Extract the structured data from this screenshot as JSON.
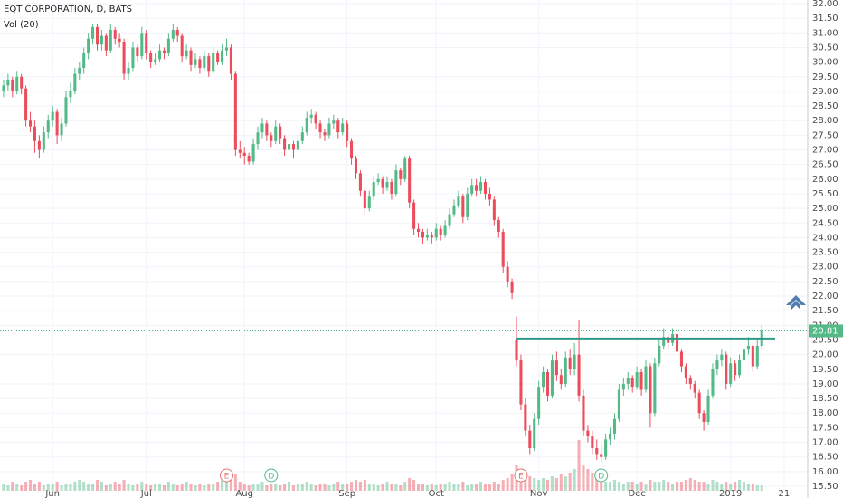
{
  "chart_data": {
    "type": "candlestick",
    "title": "EQT CORPORATION, D, BATS",
    "volume_title": "Vol (20)",
    "up_color": "#53b987",
    "down_color": "#eb4d5c",
    "grid": true,
    "ylim": [
      15.5,
      32
    ],
    "yticks": [
      {
        "value": 15.5,
        "label": "15.50"
      },
      {
        "value": 16,
        "label": "16.00"
      },
      {
        "value": 16.5,
        "label": "16.50"
      },
      {
        "value": 17,
        "label": "17.00"
      },
      {
        "value": 17.5,
        "label": "17.50"
      },
      {
        "value": 18,
        "label": "18.00"
      },
      {
        "value": 18.5,
        "label": "18.50"
      },
      {
        "value": 19,
        "label": "19.00"
      },
      {
        "value": 19.5,
        "label": "19.50"
      },
      {
        "value": 20,
        "label": "20.00"
      },
      {
        "value": 20.5,
        "label": "20.50"
      },
      {
        "value": 21,
        "label": "21.00"
      },
      {
        "value": 21.5,
        "label": "21.50"
      },
      {
        "value": 22,
        "label": "22.00"
      },
      {
        "value": 22.5,
        "label": "22.50"
      },
      {
        "value": 23,
        "label": "23.00"
      },
      {
        "value": 23.5,
        "label": "23.50"
      },
      {
        "value": 24,
        "label": "24.00"
      },
      {
        "value": 24.5,
        "label": "24.50"
      },
      {
        "value": 25,
        "label": "25.00"
      },
      {
        "value": 25.5,
        "label": "25.50"
      },
      {
        "value": 26,
        "label": "26.00"
      },
      {
        "value": 26.5,
        "label": "26.50"
      },
      {
        "value": 27,
        "label": "27.00"
      },
      {
        "value": 27.5,
        "label": "27.50"
      },
      {
        "value": 28,
        "label": "28.00"
      },
      {
        "value": 28.5,
        "label": "28.50"
      },
      {
        "value": 29,
        "label": "29.00"
      },
      {
        "value": 29.5,
        "label": "29.50"
      },
      {
        "value": 30,
        "label": "30.00"
      },
      {
        "value": 30.5,
        "label": "30.50"
      },
      {
        "value": 31,
        "label": "31.00"
      },
      {
        "value": 31.5,
        "label": "31.50"
      },
      {
        "value": 32,
        "label": "32.00"
      }
    ],
    "xlim": [
      -0.8,
      180.3
    ],
    "xticks": [
      {
        "value": 11,
        "label": "Jun"
      },
      {
        "value": 32,
        "label": "Jul"
      },
      {
        "value": 54,
        "label": "Aug"
      },
      {
        "value": 77,
        "label": "Sep"
      },
      {
        "value": 97,
        "label": "Oct"
      },
      {
        "value": 120,
        "label": "Nov"
      },
      {
        "value": 142,
        "label": "Dec"
      },
      {
        "value": 163,
        "label": "2019"
      },
      {
        "value": 175,
        "label": "21"
      }
    ],
    "candles": [
      [
        29.0,
        29.4,
        28.8,
        29.2
      ],
      [
        29.2,
        29.6,
        29.0,
        29.4
      ],
      [
        29.4,
        29.5,
        28.8,
        29.0
      ],
      [
        29.0,
        29.7,
        28.9,
        29.5
      ],
      [
        29.5,
        29.6,
        28.9,
        29.1
      ],
      [
        29.1,
        29.2,
        27.8,
        28.0
      ],
      [
        28.0,
        28.3,
        27.6,
        27.8
      ],
      [
        27.8,
        28.0,
        26.9,
        27.3
      ],
      [
        27.3,
        27.5,
        26.7,
        27.0
      ],
      [
        27.0,
        27.8,
        26.9,
        27.6
      ],
      [
        27.6,
        28.2,
        27.4,
        28.0
      ],
      [
        28.0,
        28.5,
        27.8,
        28.3
      ],
      [
        28.3,
        28.4,
        27.2,
        27.5
      ],
      [
        27.5,
        28.1,
        27.3,
        27.9
      ],
      [
        27.9,
        29.0,
        27.8,
        28.8
      ],
      [
        28.8,
        29.3,
        28.6,
        29.0
      ],
      [
        29.0,
        29.8,
        28.9,
        29.6
      ],
      [
        29.6,
        30.0,
        29.4,
        29.8
      ],
      [
        29.8,
        30.5,
        29.6,
        30.3
      ],
      [
        30.3,
        31.0,
        30.1,
        30.8
      ],
      [
        30.8,
        31.3,
        30.6,
        31.2
      ],
      [
        31.2,
        31.3,
        30.4,
        30.6
      ],
      [
        30.6,
        31.1,
        30.4,
        30.9
      ],
      [
        30.9,
        31.0,
        30.2,
        30.4
      ],
      [
        30.4,
        31.3,
        30.3,
        31.1
      ],
      [
        31.1,
        31.2,
        30.6,
        30.8
      ],
      [
        30.8,
        31.0,
        30.5,
        30.7
      ],
      [
        30.7,
        30.8,
        29.4,
        29.6
      ],
      [
        29.6,
        30.0,
        29.4,
        29.8
      ],
      [
        29.8,
        30.7,
        29.7,
        30.5
      ],
      [
        30.5,
        30.6,
        30.0,
        30.2
      ],
      [
        30.2,
        31.2,
        30.1,
        31.0
      ],
      [
        31.0,
        31.1,
        30.1,
        30.3
      ],
      [
        30.3,
        30.4,
        29.8,
        30.0
      ],
      [
        30.0,
        30.3,
        29.9,
        30.1
      ],
      [
        30.1,
        30.6,
        30.0,
        30.4
      ],
      [
        30.4,
        30.5,
        30.1,
        30.3
      ],
      [
        30.3,
        31.0,
        30.2,
        30.8
      ],
      [
        30.8,
        31.3,
        30.7,
        31.1
      ],
      [
        31.1,
        31.2,
        30.7,
        30.9
      ],
      [
        30.9,
        31.0,
        30.0,
        30.2
      ],
      [
        30.2,
        30.6,
        30.1,
        30.4
      ],
      [
        30.4,
        30.5,
        29.7,
        29.9
      ],
      [
        29.9,
        30.3,
        29.8,
        30.1
      ],
      [
        30.1,
        30.2,
        29.6,
        29.8
      ],
      [
        29.8,
        30.4,
        29.7,
        30.2
      ],
      [
        30.2,
        30.3,
        29.5,
        29.7
      ],
      [
        29.7,
        30.5,
        29.6,
        30.3
      ],
      [
        30.3,
        30.4,
        29.9,
        30.0
      ],
      [
        30.0,
        30.6,
        29.9,
        30.4
      ],
      [
        30.4,
        30.8,
        30.2,
        30.5
      ],
      [
        30.5,
        30.6,
        29.4,
        29.6
      ],
      [
        29.6,
        29.7,
        26.8,
        27.0
      ],
      [
        27.0,
        27.3,
        26.7,
        26.9
      ],
      [
        26.9,
        27.1,
        26.5,
        26.8
      ],
      [
        26.8,
        26.9,
        26.5,
        26.6
      ],
      [
        26.6,
        27.4,
        26.5,
        27.2
      ],
      [
        27.2,
        27.8,
        27.0,
        27.6
      ],
      [
        27.6,
        28.1,
        27.4,
        27.9
      ],
      [
        27.9,
        28.0,
        27.3,
        27.5
      ],
      [
        27.5,
        27.6,
        27.1,
        27.3
      ],
      [
        27.3,
        28.0,
        27.2,
        27.8
      ],
      [
        27.8,
        27.9,
        27.2,
        27.4
      ],
      [
        27.4,
        27.5,
        26.8,
        27.0
      ],
      [
        27.0,
        27.4,
        26.9,
        27.2
      ],
      [
        27.2,
        27.3,
        26.7,
        27.0
      ],
      [
        27.0,
        27.5,
        26.9,
        27.3
      ],
      [
        27.3,
        27.8,
        27.2,
        27.6
      ],
      [
        27.6,
        28.3,
        27.5,
        28.1
      ],
      [
        28.1,
        28.4,
        27.9,
        28.2
      ],
      [
        28.2,
        28.3,
        27.7,
        27.9
      ],
      [
        27.9,
        28.0,
        27.4,
        27.6
      ],
      [
        27.6,
        27.7,
        27.3,
        27.5
      ],
      [
        27.5,
        28.1,
        27.4,
        27.9
      ],
      [
        27.9,
        28.2,
        27.7,
        28.0
      ],
      [
        28.0,
        28.1,
        27.4,
        27.6
      ],
      [
        27.6,
        28.1,
        27.5,
        27.9
      ],
      [
        27.9,
        28.0,
        27.1,
        27.3
      ],
      [
        27.3,
        27.4,
        26.5,
        26.7
      ],
      [
        26.7,
        26.8,
        26.0,
        26.2
      ],
      [
        26.2,
        26.3,
        25.4,
        25.6
      ],
      [
        25.6,
        25.7,
        24.8,
        25.0
      ],
      [
        25.0,
        25.6,
        24.9,
        25.4
      ],
      [
        25.4,
        26.1,
        25.3,
        25.9
      ],
      [
        25.9,
        26.2,
        25.8,
        26.0
      ],
      [
        26.0,
        26.1,
        25.5,
        25.7
      ],
      [
        25.7,
        26.1,
        25.6,
        25.9
      ],
      [
        25.9,
        26.0,
        25.3,
        25.5
      ],
      [
        25.5,
        26.5,
        25.4,
        26.3
      ],
      [
        26.3,
        26.4,
        25.8,
        26.0
      ],
      [
        26.0,
        26.8,
        25.9,
        26.7
      ],
      [
        26.7,
        26.8,
        25.0,
        25.2
      ],
      [
        25.2,
        25.3,
        24.1,
        24.3
      ],
      [
        24.3,
        24.5,
        24.0,
        24.2
      ],
      [
        24.2,
        24.3,
        23.8,
        24.0
      ],
      [
        24.0,
        24.3,
        23.9,
        24.1
      ],
      [
        24.1,
        24.2,
        23.8,
        24.0
      ],
      [
        24.0,
        24.5,
        23.9,
        24.3
      ],
      [
        24.3,
        24.4,
        23.9,
        24.1
      ],
      [
        24.1,
        24.6,
        24.0,
        24.4
      ],
      [
        24.4,
        25.0,
        24.3,
        24.8
      ],
      [
        24.8,
        25.3,
        24.7,
        25.1
      ],
      [
        25.1,
        25.6,
        25.0,
        25.4
      ],
      [
        25.4,
        25.5,
        24.5,
        24.7
      ],
      [
        24.7,
        25.7,
        24.6,
        25.5
      ],
      [
        25.5,
        26.0,
        25.4,
        25.8
      ],
      [
        25.8,
        26.0,
        25.4,
        25.6
      ],
      [
        25.6,
        26.1,
        25.5,
        25.9
      ],
      [
        25.9,
        26.0,
        25.3,
        25.5
      ],
      [
        25.5,
        25.7,
        25.1,
        25.3
      ],
      [
        25.3,
        25.4,
        24.4,
        24.6
      ],
      [
        24.6,
        24.7,
        24.0,
        24.2
      ],
      [
        24.2,
        24.3,
        22.8,
        23.0
      ],
      [
        23.0,
        23.2,
        22.3,
        22.5
      ],
      [
        22.5,
        22.6,
        21.9,
        22.1
      ],
      [
        20.5,
        21.3,
        19.6,
        19.8
      ],
      [
        19.8,
        20.0,
        18.1,
        18.3
      ],
      [
        18.3,
        18.5,
        17.2,
        17.4
      ],
      [
        17.4,
        17.6,
        16.6,
        16.8
      ],
      [
        16.8,
        18.0,
        16.7,
        17.8
      ],
      [
        17.8,
        19.1,
        17.6,
        18.9
      ],
      [
        18.9,
        19.6,
        18.7,
        19.4
      ],
      [
        19.4,
        19.5,
        18.4,
        18.6
      ],
      [
        18.6,
        20.0,
        18.5,
        19.8
      ],
      [
        19.8,
        20.1,
        19.1,
        19.3
      ],
      [
        19.3,
        19.5,
        18.8,
        19.0
      ],
      [
        19.0,
        20.1,
        18.9,
        19.9
      ],
      [
        19.9,
        20.2,
        19.3,
        19.5
      ],
      [
        19.5,
        20.4,
        19.3,
        20.0
      ],
      [
        20.0,
        21.2,
        18.4,
        18.6
      ],
      [
        18.6,
        18.8,
        17.2,
        17.4
      ],
      [
        17.4,
        17.6,
        17.0,
        17.2
      ],
      [
        17.2,
        17.4,
        16.6,
        16.8
      ],
      [
        16.8,
        17.1,
        16.4,
        16.6
      ],
      [
        16.6,
        16.9,
        16.3,
        16.5
      ],
      [
        16.5,
        17.3,
        16.4,
        17.1
      ],
      [
        17.1,
        17.5,
        16.9,
        17.3
      ],
      [
        17.3,
        18.0,
        17.1,
        17.8
      ],
      [
        17.8,
        19.0,
        17.7,
        18.8
      ],
      [
        18.8,
        19.2,
        18.6,
        19.0
      ],
      [
        19.0,
        19.4,
        18.8,
        19.2
      ],
      [
        19.2,
        19.3,
        18.7,
        18.9
      ],
      [
        18.9,
        19.6,
        18.8,
        19.4
      ],
      [
        19.4,
        19.5,
        18.6,
        18.8
      ],
      [
        18.8,
        19.8,
        18.7,
        19.6
      ],
      [
        19.6,
        19.7,
        17.5,
        18.0
      ],
      [
        18.0,
        19.9,
        17.9,
        19.7
      ],
      [
        19.7,
        20.5,
        19.6,
        20.3
      ],
      [
        20.3,
        20.9,
        20.2,
        20.6
      ],
      [
        20.6,
        20.7,
        20.2,
        20.4
      ],
      [
        20.4,
        20.9,
        20.3,
        20.7
      ],
      [
        20.7,
        20.8,
        19.9,
        20.1
      ],
      [
        20.1,
        20.2,
        19.4,
        19.6
      ],
      [
        19.6,
        19.7,
        19.0,
        19.2
      ],
      [
        19.2,
        19.3,
        18.8,
        19.0
      ],
      [
        19.0,
        19.1,
        18.5,
        18.7
      ],
      [
        18.7,
        18.8,
        17.8,
        18.0
      ],
      [
        18.0,
        18.1,
        17.4,
        17.7
      ],
      [
        17.7,
        18.8,
        17.6,
        18.6
      ],
      [
        18.6,
        19.7,
        18.5,
        19.5
      ],
      [
        19.5,
        20.0,
        19.3,
        19.8
      ],
      [
        19.8,
        20.2,
        19.6,
        20.0
      ],
      [
        20.0,
        20.1,
        18.8,
        19.0
      ],
      [
        19.0,
        19.9,
        18.9,
        19.7
      ],
      [
        19.7,
        19.8,
        19.1,
        19.3
      ],
      [
        19.3,
        20.0,
        19.2,
        19.8
      ],
      [
        19.8,
        20.4,
        19.7,
        20.2
      ],
      [
        20.2,
        20.6,
        20.0,
        20.3
      ],
      [
        20.3,
        20.4,
        19.4,
        19.6
      ],
      [
        19.6,
        20.5,
        19.5,
        20.3
      ],
      [
        20.3,
        21.0,
        20.2,
        20.81
      ]
    ],
    "volumes": [
      4,
      3,
      5,
      4,
      3,
      5,
      6,
      4,
      5,
      3,
      4,
      4,
      5,
      3,
      4,
      4,
      5,
      6,
      5,
      4,
      4,
      6,
      5,
      3,
      4,
      5,
      4,
      6,
      4,
      3,
      4,
      5,
      4,
      3,
      4,
      4,
      3,
      5,
      4,
      3,
      4,
      5,
      4,
      3,
      4,
      3,
      4,
      4,
      5,
      6,
      5,
      8,
      9,
      5,
      4,
      3,
      4,
      4,
      5,
      3,
      4,
      4,
      3,
      4,
      5,
      3,
      4,
      4,
      5,
      4,
      3,
      4,
      4,
      3,
      4,
      5,
      4,
      4,
      5,
      6,
      5,
      6,
      4,
      4,
      3,
      4,
      5,
      4,
      4,
      3,
      5,
      7,
      6,
      4,
      4,
      3,
      4,
      3,
      4,
      4,
      5,
      4,
      4,
      5,
      3,
      4,
      4,
      5,
      4,
      4,
      5,
      4,
      6,
      7,
      9,
      14,
      12,
      10,
      8,
      7,
      6,
      7,
      6,
      8,
      7,
      9,
      8,
      10,
      12,
      28,
      14,
      12,
      10,
      8,
      6,
      5,
      5,
      6,
      5,
      4,
      5,
      5,
      4,
      5,
      4,
      6,
      5,
      5,
      6,
      5,
      4,
      5,
      5,
      6,
      7,
      6,
      5,
      5,
      4,
      6,
      5,
      4,
      5,
      4,
      5,
      6,
      5,
      4,
      4,
      3,
      3
    ],
    "events": [
      {
        "label": "E",
        "at": 50
      },
      {
        "label": "D",
        "at": 60
      },
      {
        "label": "E",
        "at": 116
      },
      {
        "label": "D",
        "at": 134
      }
    ],
    "resistance": {
      "value": 20.55,
      "from": 115,
      "to": 173
    }
  }
}
